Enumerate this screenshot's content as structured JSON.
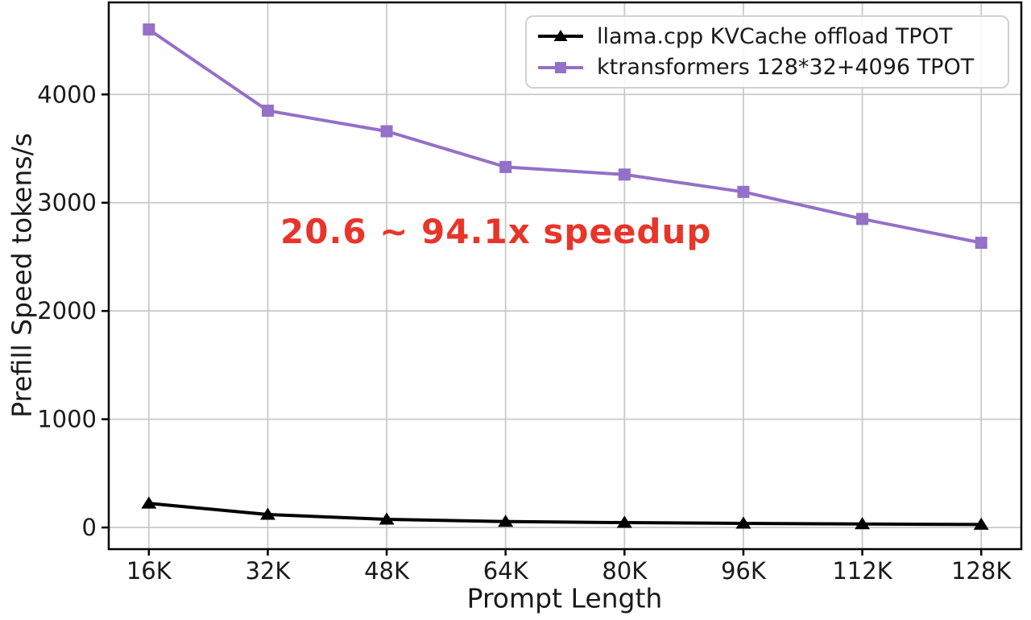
{
  "figure": {
    "background": "#ffffff"
  },
  "chart_data": {
    "type": "line",
    "title": "",
    "xlabel": "Prompt Length",
    "ylabel": "Prefill Speed tokens/s",
    "categories": [
      "16K",
      "32K",
      "48K",
      "64K",
      "80K",
      "96K",
      "112K",
      "128K"
    ],
    "x": [
      16,
      32,
      48,
      64,
      80,
      96,
      112,
      128
    ],
    "series": [
      {
        "name": "llama.cpp KVCache offload TPOT",
        "color": "#000000",
        "marker": "triangle-up",
        "values": [
          223,
          120,
          75,
          55,
          45,
          38,
          32,
          28
        ]
      },
      {
        "name": "ktransformers 128*32+4096 TPOT",
        "color": "#9470c8",
        "marker": "square",
        "values": [
          4600,
          3850,
          3660,
          3330,
          3260,
          3100,
          2850,
          2630
        ]
      }
    ],
    "y_ticks": [
      0,
      1000,
      2000,
      3000,
      4000
    ],
    "xlim": [
      10.6,
      133.4
    ],
    "ylim": [
      -200,
      4850
    ],
    "grid": true,
    "grid_color": "#c9c9c9",
    "axis_color": "#000000",
    "legend_position": "upper right",
    "annotation": {
      "text": "20.6 ~ 94.1x speedup",
      "color": "#e8352a"
    }
  }
}
